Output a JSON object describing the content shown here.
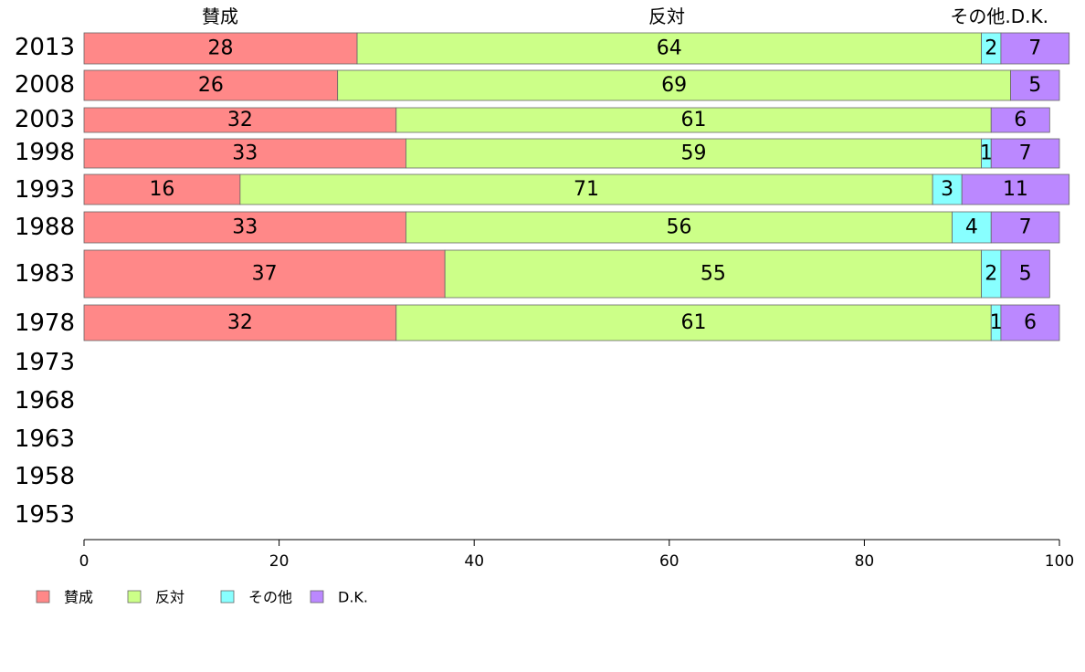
{
  "chart_data": {
    "type": "bar",
    "orientation": "horizontal",
    "stacked": true,
    "categories": [
      "2013",
      "2008",
      "2003",
      "1998",
      "1993",
      "1988",
      "1983",
      "1978",
      "1973",
      "1968",
      "1963",
      "1958",
      "1953"
    ],
    "series": [
      {
        "name": "賛成",
        "color": "#ff8888",
        "values": [
          28,
          26,
          32,
          33,
          16,
          33,
          37,
          32,
          null,
          null,
          null,
          null,
          null
        ]
      },
      {
        "name": "反対",
        "color": "#ccff88",
        "values": [
          64,
          69,
          61,
          59,
          71,
          56,
          55,
          61,
          null,
          null,
          null,
          null,
          null
        ]
      },
      {
        "name": "その他",
        "color": "#88ffff",
        "values": [
          2,
          0,
          0,
          1,
          3,
          4,
          2,
          1,
          null,
          null,
          null,
          null,
          null
        ]
      },
      {
        "name": "D.K.",
        "color": "#bb88ff",
        "values": [
          7,
          5,
          6,
          7,
          11,
          7,
          5,
          6,
          null,
          null,
          null,
          null,
          null
        ]
      }
    ],
    "column_headers": [
      "賛成",
      "反対",
      "その他",
      ".D.K."
    ],
    "xlim": [
      0,
      100
    ],
    "x_ticks": [
      0,
      20,
      40,
      60,
      80,
      100
    ],
    "legend_position": "bottom-left",
    "grid": false
  }
}
